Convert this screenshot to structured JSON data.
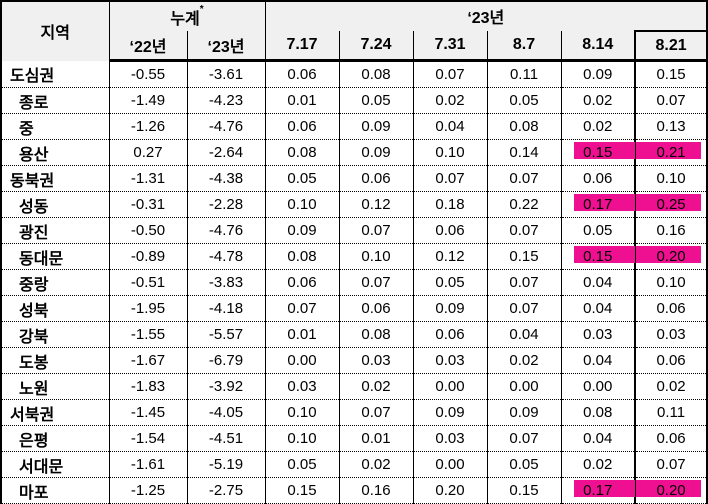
{
  "colors": {
    "highlight_pink": "#ee1090",
    "header_bg": "#f0f0f0",
    "border": "#000000"
  },
  "header": {
    "region": "지역",
    "cumulative": "누계",
    "cumulative_note": "*",
    "cumulative_years": [
      "‘22년",
      "‘23년"
    ],
    "current_year": "‘23년",
    "weeks": [
      "7.17",
      "7.24",
      "7.31",
      "8.7",
      "8.14",
      "8.21"
    ]
  },
  "rows": [
    {
      "region": "도심권",
      "group": true,
      "values": [
        "-0.55",
        "-3.61",
        "0.06",
        "0.08",
        "0.07",
        "0.11",
        "0.09",
        "0.15"
      ],
      "highlight_cols": []
    },
    {
      "region": "종로",
      "group": false,
      "values": [
        "-1.49",
        "-4.23",
        "0.01",
        "0.05",
        "0.02",
        "0.05",
        "0.02",
        "0.07"
      ],
      "highlight_cols": []
    },
    {
      "region": "중",
      "group": false,
      "values": [
        "-1.26",
        "-4.76",
        "0.06",
        "0.09",
        "0.04",
        "0.08",
        "0.02",
        "0.13"
      ],
      "highlight_cols": []
    },
    {
      "region": "용산",
      "group": false,
      "values": [
        "0.27",
        "-2.64",
        "0.08",
        "0.09",
        "0.10",
        "0.14",
        "0.15",
        "0.21"
      ],
      "highlight_cols": [
        6,
        7
      ]
    },
    {
      "region": "동북권",
      "group": true,
      "values": [
        "-1.31",
        "-4.38",
        "0.05",
        "0.06",
        "0.07",
        "0.07",
        "0.06",
        "0.10"
      ],
      "highlight_cols": []
    },
    {
      "region": "성동",
      "group": false,
      "values": [
        "-0.31",
        "-2.28",
        "0.10",
        "0.12",
        "0.18",
        "0.22",
        "0.17",
        "0.25"
      ],
      "highlight_cols": [
        6,
        7
      ]
    },
    {
      "region": "광진",
      "group": false,
      "values": [
        "-0.50",
        "-4.76",
        "0.09",
        "0.07",
        "0.06",
        "0.07",
        "0.05",
        "0.16"
      ],
      "highlight_cols": []
    },
    {
      "region": "동대문",
      "group": false,
      "values": [
        "-0.89",
        "-4.78",
        "0.08",
        "0.10",
        "0.12",
        "0.15",
        "0.15",
        "0.20"
      ],
      "highlight_cols": [
        6,
        7
      ]
    },
    {
      "region": "중랑",
      "group": false,
      "values": [
        "-0.51",
        "-3.83",
        "0.06",
        "0.07",
        "0.05",
        "0.07",
        "0.04",
        "0.10"
      ],
      "highlight_cols": []
    },
    {
      "region": "성북",
      "group": false,
      "values": [
        "-1.95",
        "-4.18",
        "0.07",
        "0.06",
        "0.09",
        "0.07",
        "0.04",
        "0.06"
      ],
      "highlight_cols": []
    },
    {
      "region": "강북",
      "group": false,
      "values": [
        "-1.55",
        "-5.57",
        "0.01",
        "0.08",
        "0.06",
        "0.04",
        "0.03",
        "0.03"
      ],
      "highlight_cols": []
    },
    {
      "region": "도봉",
      "group": false,
      "values": [
        "-1.67",
        "-6.79",
        "0.00",
        "0.03",
        "0.03",
        "0.02",
        "0.04",
        "0.06"
      ],
      "highlight_cols": []
    },
    {
      "region": "노원",
      "group": false,
      "values": [
        "-1.83",
        "-3.92",
        "0.03",
        "0.02",
        "0.00",
        "0.00",
        "0.00",
        "0.02"
      ],
      "highlight_cols": []
    },
    {
      "region": "서북권",
      "group": true,
      "values": [
        "-1.45",
        "-4.05",
        "0.10",
        "0.07",
        "0.09",
        "0.09",
        "0.08",
        "0.11"
      ],
      "highlight_cols": []
    },
    {
      "region": "은평",
      "group": false,
      "values": [
        "-1.54",
        "-4.51",
        "0.10",
        "0.01",
        "0.03",
        "0.07",
        "0.04",
        "0.06"
      ],
      "highlight_cols": []
    },
    {
      "region": "서대문",
      "group": false,
      "values": [
        "-1.61",
        "-5.19",
        "0.05",
        "0.02",
        "0.00",
        "0.05",
        "0.02",
        "0.07"
      ],
      "highlight_cols": []
    },
    {
      "region": "마포",
      "group": false,
      "values": [
        "-1.25",
        "-2.75",
        "0.15",
        "0.16",
        "0.20",
        "0.15",
        "0.17",
        "0.20"
      ],
      "highlight_cols": [
        6,
        7
      ]
    }
  ]
}
